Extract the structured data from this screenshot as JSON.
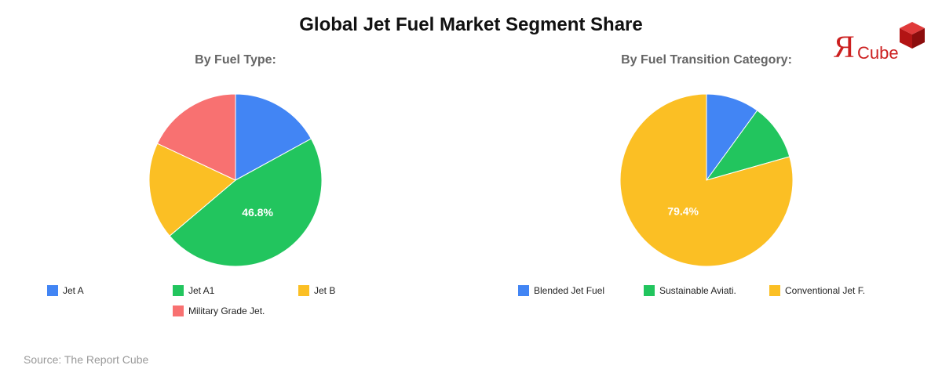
{
  "title": "Global Jet Fuel Market Segment Share",
  "source": "Source: The Report Cube",
  "logo": {
    "r_text": "Я",
    "cube_text": "Cube"
  },
  "chart_data": [
    {
      "type": "pie",
      "title": "By Fuel Type:",
      "categories": [
        "Jet A",
        "Jet A1",
        "Jet B",
        "Military Grade Jet."
      ],
      "values": [
        17.0,
        46.8,
        18.2,
        18.0
      ],
      "colors": [
        "#4285f4",
        "#22c55e",
        "#fbbf24",
        "#f87171"
      ],
      "data_labels": [
        "",
        "46.8%",
        "",
        ""
      ],
      "legend": "bottom"
    },
    {
      "type": "pie",
      "title": "By Fuel Transition Category:",
      "categories": [
        "Blended Jet Fuel",
        "Sustainable Aviati.",
        "Conventional Jet F."
      ],
      "values": [
        10.0,
        10.6,
        79.4
      ],
      "colors": [
        "#4285f4",
        "#22c55e",
        "#fbbf24"
      ],
      "data_labels": [
        "",
        "",
        "79.4%"
      ],
      "legend": "bottom"
    }
  ]
}
